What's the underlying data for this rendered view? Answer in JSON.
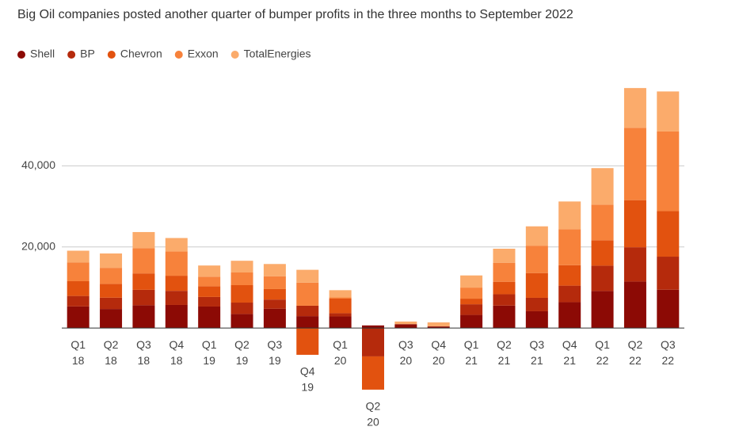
{
  "chart_data": {
    "type": "stacked_bar",
    "title": "Big Oil companies posted another quarter of bumper profits in the three months to September 2022",
    "categories": [
      [
        "Q1",
        "18"
      ],
      [
        "Q2",
        "18"
      ],
      [
        "Q3",
        "18"
      ],
      [
        "Q4",
        "18"
      ],
      [
        "Q1",
        "19"
      ],
      [
        "Q2",
        "19"
      ],
      [
        "Q3",
        "19"
      ],
      [
        "Q4",
        "19"
      ],
      [
        "Q1",
        "20"
      ],
      [
        "Q2",
        "20"
      ],
      [
        "Q3",
        "20"
      ],
      [
        "Q4",
        "20"
      ],
      [
        "Q1",
        "21"
      ],
      [
        "Q2",
        "21"
      ],
      [
        "Q3",
        "21"
      ],
      [
        "Q4",
        "21"
      ],
      [
        "Q1",
        "22"
      ],
      [
        "Q2",
        "22"
      ],
      [
        "Q3",
        "22"
      ]
    ],
    "series": [
      {
        "name": "Shell",
        "color": "#8c0a05",
        "values": [
          5322,
          4690,
          5620,
          5690,
          5300,
          3460,
          4770,
          2930,
          2860,
          640,
          950,
          390,
          3230,
          5530,
          4130,
          6380,
          9130,
          11470,
          9450
        ]
      },
      {
        "name": "BP",
        "color": "#b52a0c",
        "values": [
          2585,
          2800,
          3800,
          3480,
          2360,
          2810,
          2250,
          2570,
          790,
          -7000,
          0,
          0,
          2630,
          2800,
          3320,
          4070,
          6250,
          8450,
          8150
        ]
      },
      {
        "name": "Chevron",
        "color": "#e2520f",
        "values": [
          3638,
          3400,
          4050,
          3730,
          2650,
          4300,
          2580,
          -6610,
          3600,
          -8200,
          0,
          0,
          1380,
          3080,
          6110,
          5060,
          6260,
          11620,
          11230
        ]
      },
      {
        "name": "Exxon",
        "color": "#f7823b",
        "values": [
          4650,
          3950,
          6240,
          6000,
          2350,
          3130,
          3170,
          5690,
          300,
          0,
          0,
          0,
          2730,
          4690,
          6750,
          8870,
          8800,
          17850,
          19660
        ]
      },
      {
        "name": "TotalEnergies",
        "color": "#fbab6b",
        "values": [
          2878,
          3550,
          3960,
          3300,
          2760,
          2890,
          3020,
          3170,
          1780,
          0,
          650,
          1000,
          3000,
          3460,
          4770,
          6830,
          9000,
          9800,
          9860
        ]
      }
    ],
    "ylim": [
      -16000,
      60000
    ],
    "yticks": [
      {
        "value": 20000,
        "label": "20,000"
      },
      {
        "value": 40000,
        "label": "40,000"
      }
    ],
    "grid": true,
    "legend": "top"
  }
}
